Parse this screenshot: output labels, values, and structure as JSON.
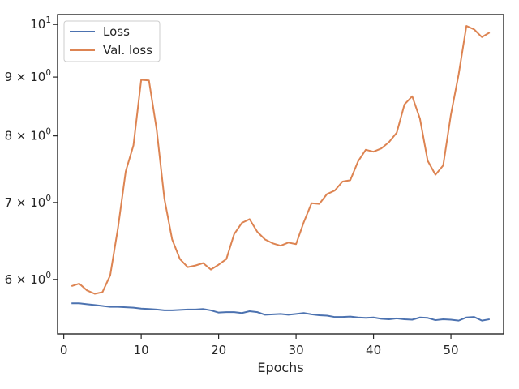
{
  "chart_data": {
    "type": "line",
    "title": "",
    "xlabel": "Epochs",
    "ylabel": "",
    "y_scale": "log",
    "grid": false,
    "legend_position": "top-left",
    "xlim": [
      -0.8,
      56.8
    ],
    "ylim": [
      5.38,
      10.2
    ],
    "x_ticks": [
      0,
      10,
      20,
      30,
      40,
      50
    ],
    "x_tick_labels": [
      "0",
      "10",
      "20",
      "30",
      "40",
      "50"
    ],
    "y_ticks": [
      {
        "value": 6,
        "base": "6 × 10",
        "exp": "0"
      },
      {
        "value": 7,
        "base": "7 × 10",
        "exp": "0"
      },
      {
        "value": 8,
        "base": "8 × 10",
        "exp": "0"
      },
      {
        "value": 9,
        "base": "9 × 10",
        "exp": "0"
      },
      {
        "value": 10,
        "base": "10",
        "exp": "1"
      }
    ],
    "series": [
      {
        "name": "Loss",
        "color": "#4c72b0",
        "x": [
          1,
          2,
          3,
          4,
          5,
          6,
          7,
          8,
          9,
          10,
          11,
          12,
          13,
          14,
          15,
          16,
          17,
          18,
          19,
          20,
          21,
          22,
          23,
          24,
          25,
          26,
          27,
          28,
          29,
          30,
          31,
          32,
          33,
          34,
          35,
          36,
          37,
          38,
          39,
          40,
          41,
          42,
          43,
          44,
          45,
          46,
          47,
          48,
          49,
          50,
          51,
          52,
          53,
          54,
          55
        ],
        "values": [
          5.72,
          5.72,
          5.71,
          5.7,
          5.69,
          5.68,
          5.68,
          5.675,
          5.67,
          5.66,
          5.655,
          5.65,
          5.64,
          5.64,
          5.645,
          5.65,
          5.65,
          5.655,
          5.64,
          5.615,
          5.62,
          5.62,
          5.61,
          5.63,
          5.62,
          5.59,
          5.595,
          5.6,
          5.59,
          5.6,
          5.61,
          5.595,
          5.585,
          5.58,
          5.565,
          5.565,
          5.57,
          5.56,
          5.555,
          5.56,
          5.545,
          5.54,
          5.55,
          5.54,
          5.535,
          5.56,
          5.555,
          5.53,
          5.54,
          5.535,
          5.525,
          5.56,
          5.565,
          5.525,
          5.54
        ]
      },
      {
        "name": "Val. loss",
        "color": "#dd8452",
        "x": [
          1,
          2,
          3,
          4,
          5,
          6,
          7,
          8,
          9,
          10,
          11,
          12,
          13,
          14,
          15,
          16,
          17,
          18,
          19,
          20,
          21,
          22,
          23,
          24,
          25,
          26,
          27,
          28,
          29,
          30,
          31,
          32,
          33,
          34,
          35,
          36,
          37,
          38,
          39,
          40,
          41,
          42,
          43,
          44,
          45,
          46,
          47,
          48,
          49,
          50,
          51,
          52,
          53,
          54,
          55
        ],
        "values": [
          5.92,
          5.95,
          5.87,
          5.83,
          5.85,
          6.05,
          6.65,
          7.45,
          7.85,
          8.95,
          8.94,
          8.1,
          7.05,
          6.5,
          6.25,
          6.15,
          6.17,
          6.2,
          6.12,
          6.18,
          6.25,
          6.57,
          6.72,
          6.77,
          6.6,
          6.5,
          6.45,
          6.42,
          6.46,
          6.44,
          6.73,
          6.99,
          6.98,
          7.12,
          7.17,
          7.3,
          7.32,
          7.6,
          7.78,
          7.75,
          7.8,
          7.9,
          8.05,
          8.52,
          8.66,
          8.28,
          7.61,
          7.4,
          7.54,
          8.35,
          9.05,
          9.97,
          9.9,
          9.75,
          9.84
        ]
      }
    ]
  }
}
